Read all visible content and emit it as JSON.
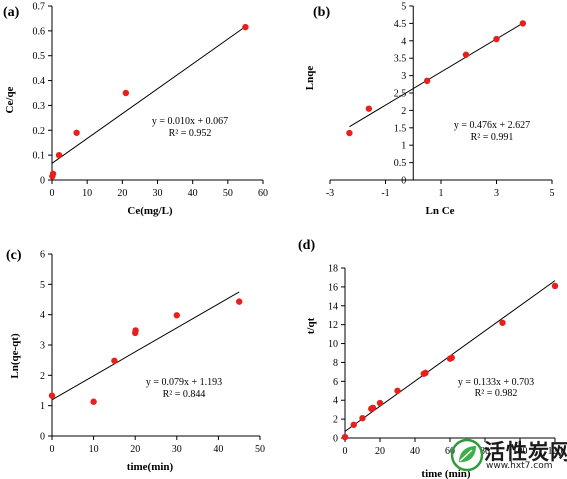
{
  "chart_data": [
    {
      "type": "scatter",
      "panel_label": "(a)",
      "xlabel": "Ce(mg/L)",
      "ylabel": "Ce/qe",
      "xlim": [
        0,
        60
      ],
      "ylim": [
        0,
        0.7
      ],
      "xticks": [
        "0",
        "10",
        "20",
        "30",
        "40",
        "50",
        "60"
      ],
      "yticks": [
        "0",
        "0.1",
        "0.2",
        "0.3",
        "0.4",
        "0.5",
        "0.6",
        "0.7"
      ],
      "points": [
        [
          0.1,
          0.015
        ],
        [
          0.3,
          0.025
        ],
        [
          2,
          0.1
        ],
        [
          7,
          0.19
        ],
        [
          21,
          0.35
        ],
        [
          55,
          0.615
        ]
      ],
      "fit": {
        "slope": 0.01,
        "intercept": 0.067,
        "x_range": [
          0,
          55
        ]
      },
      "equation": "y = 0.010x + 0.067",
      "r2": "R² = 0.952",
      "marker_color": "#e8201c"
    },
    {
      "type": "scatter",
      "panel_label": "(b)",
      "xlabel": "Ln Ce",
      "ylabel": "Lnqe",
      "xlim": [
        -3,
        5
      ],
      "ylim": [
        0,
        5
      ],
      "xticks": [
        "-3",
        "-1",
        "1",
        "3",
        "5"
      ],
      "yticks": [
        "0",
        "0.5",
        "1",
        "1.5",
        "2",
        "2.5",
        "3",
        "3.5",
        "4",
        "4.5",
        "5"
      ],
      "points": [
        [
          -2.3,
          1.35
        ],
        [
          -1.6,
          2.05
        ],
        [
          0.5,
          2.85
        ],
        [
          1.9,
          3.6
        ],
        [
          3.0,
          4.05
        ],
        [
          3.95,
          4.5
        ]
      ],
      "fit": {
        "slope": 0.476,
        "intercept": 2.627,
        "x_range": [
          -2.3,
          3.95
        ]
      },
      "equation": "y = 0.476x + 2.627",
      "r2": "R² = 0.991",
      "marker_color": "#e8201c"
    },
    {
      "type": "scatter",
      "panel_label": "(c)",
      "xlabel": "time(min)",
      "ylabel": "Ln(qe-qt)",
      "xlim": [
        0,
        50
      ],
      "ylim": [
        0,
        6
      ],
      "xticks": [
        "0",
        "10",
        "20",
        "30",
        "40",
        "50"
      ],
      "yticks": [
        "0",
        "1",
        "2",
        "3",
        "4",
        "5",
        "6"
      ],
      "points": [
        [
          0,
          1.33
        ],
        [
          10,
          1.13
        ],
        [
          15,
          2.48
        ],
        [
          20,
          3.4
        ],
        [
          20.1,
          3.48
        ],
        [
          30,
          3.98
        ],
        [
          45,
          4.43
        ]
      ],
      "fit": {
        "slope": 0.079,
        "intercept": 1.193,
        "x_range": [
          0,
          45
        ]
      },
      "equation": "y = 0.079x + 1.193",
      "r2": "R² = 0.844",
      "marker_color": "#e8201c"
    },
    {
      "type": "scatter",
      "panel_label": "(d)",
      "xlabel": "time (min)",
      "ylabel": "t/qt",
      "xlim": [
        0,
        120
      ],
      "ylim": [
        0,
        18
      ],
      "xticks": [
        "0",
        "20",
        "40",
        "60",
        "80",
        "100",
        "120"
      ],
      "yticks": [
        "0",
        "2",
        "4",
        "6",
        "8",
        "10",
        "12",
        "14",
        "16",
        "18"
      ],
      "points": [
        [
          0,
          0.1
        ],
        [
          5,
          1.4
        ],
        [
          10,
          2.1
        ],
        [
          15,
          3.1
        ],
        [
          16,
          3.2
        ],
        [
          20,
          3.7
        ],
        [
          30,
          5.0
        ],
        [
          45,
          6.8
        ],
        [
          46,
          6.9
        ],
        [
          60,
          8.4
        ],
        [
          61,
          8.5
        ],
        [
          90,
          12.2
        ],
        [
          120,
          16.1
        ]
      ],
      "fit": {
        "slope": 0.133,
        "intercept": 0.703,
        "x_range": [
          0,
          120
        ]
      },
      "equation": "y = 0.133x + 0.703",
      "r2": "R² = 0.982",
      "marker_color": "#e8201c"
    }
  ],
  "watermark": {
    "title": "活性炭网",
    "url": "www.hxt7.com"
  }
}
